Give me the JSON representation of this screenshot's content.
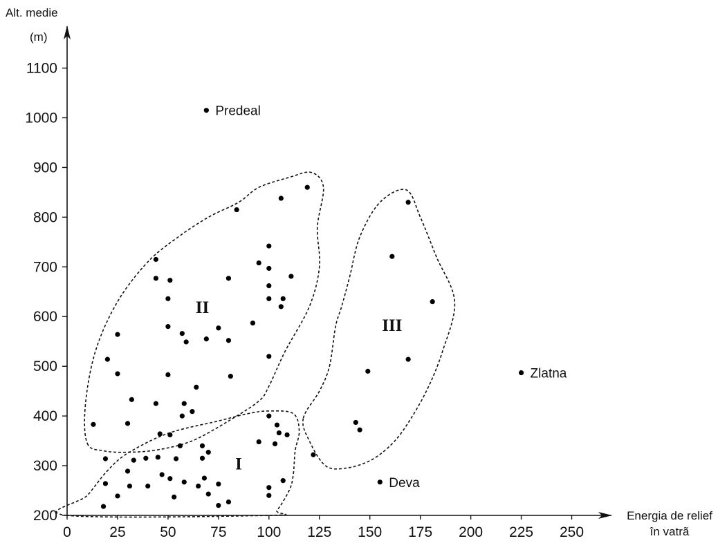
{
  "chart_data": {
    "type": "scatter",
    "title": "",
    "xlabel": "Energia de relief în vatrã",
    "xlabel_lines": [
      "Energia de relief",
      "în vatrã"
    ],
    "ylabel": "Alt. medie (m)",
    "ylabel_lines": [
      "Alt. medie",
      "(m)"
    ],
    "xlim": [
      0,
      250
    ],
    "ylim": [
      200,
      1100
    ],
    "x_ticks": [
      0,
      25,
      50,
      75,
      100,
      125,
      150,
      175,
      200,
      225,
      250
    ],
    "y_ticks": [
      200,
      300,
      400,
      500,
      600,
      700,
      800,
      900,
      1000,
      1100
    ],
    "grid": false,
    "points": [
      {
        "x": 69,
        "y": 1015,
        "label": "Predeal"
      },
      {
        "x": 225,
        "y": 487,
        "label": "Zlatna"
      },
      {
        "x": 155,
        "y": 267,
        "label": "Deva"
      },
      {
        "x": 119,
        "y": 860
      },
      {
        "x": 84,
        "y": 815
      },
      {
        "x": 106,
        "y": 838
      },
      {
        "x": 100,
        "y": 742
      },
      {
        "x": 95,
        "y": 708
      },
      {
        "x": 100,
        "y": 697
      },
      {
        "x": 111,
        "y": 681
      },
      {
        "x": 100,
        "y": 662
      },
      {
        "x": 100,
        "y": 636
      },
      {
        "x": 107,
        "y": 636
      },
      {
        "x": 106,
        "y": 620
      },
      {
        "x": 80,
        "y": 677
      },
      {
        "x": 44,
        "y": 715
      },
      {
        "x": 44,
        "y": 677
      },
      {
        "x": 51,
        "y": 673
      },
      {
        "x": 50,
        "y": 636
      },
      {
        "x": 25,
        "y": 564
      },
      {
        "x": 50,
        "y": 580
      },
      {
        "x": 57,
        "y": 566
      },
      {
        "x": 59,
        "y": 549
      },
      {
        "x": 69,
        "y": 555
      },
      {
        "x": 75,
        "y": 577
      },
      {
        "x": 80,
        "y": 552
      },
      {
        "x": 92,
        "y": 587
      },
      {
        "x": 20,
        "y": 514
      },
      {
        "x": 25,
        "y": 485
      },
      {
        "x": 50,
        "y": 483
      },
      {
        "x": 81,
        "y": 480
      },
      {
        "x": 100,
        "y": 520
      },
      {
        "x": 64,
        "y": 458
      },
      {
        "x": 32,
        "y": 433
      },
      {
        "x": 44,
        "y": 425
      },
      {
        "x": 58,
        "y": 425
      },
      {
        "x": 62,
        "y": 409
      },
      {
        "x": 57,
        "y": 400
      },
      {
        "x": 13,
        "y": 383
      },
      {
        "x": 30,
        "y": 385
      },
      {
        "x": 46,
        "y": 364
      },
      {
        "x": 51,
        "y": 362
      },
      {
        "x": 100,
        "y": 400
      },
      {
        "x": 104,
        "y": 382
      },
      {
        "x": 105,
        "y": 366
      },
      {
        "x": 109,
        "y": 362
      },
      {
        "x": 95,
        "y": 348
      },
      {
        "x": 103,
        "y": 344
      },
      {
        "x": 56,
        "y": 340
      },
      {
        "x": 67,
        "y": 340
      },
      {
        "x": 70,
        "y": 327
      },
      {
        "x": 19,
        "y": 314
      },
      {
        "x": 33,
        "y": 311
      },
      {
        "x": 39,
        "y": 315
      },
      {
        "x": 45,
        "y": 317
      },
      {
        "x": 54,
        "y": 314
      },
      {
        "x": 67,
        "y": 315
      },
      {
        "x": 30,
        "y": 289
      },
      {
        "x": 47,
        "y": 282
      },
      {
        "x": 51,
        "y": 274
      },
      {
        "x": 58,
        "y": 267
      },
      {
        "x": 68,
        "y": 275
      },
      {
        "x": 19,
        "y": 264
      },
      {
        "x": 31,
        "y": 259
      },
      {
        "x": 40,
        "y": 259
      },
      {
        "x": 65,
        "y": 259
      },
      {
        "x": 75,
        "y": 263
      },
      {
        "x": 100,
        "y": 256
      },
      {
        "x": 107,
        "y": 270
      },
      {
        "x": 25,
        "y": 239
      },
      {
        "x": 53,
        "y": 237
      },
      {
        "x": 70,
        "y": 243
      },
      {
        "x": 80,
        "y": 227
      },
      {
        "x": 100,
        "y": 240
      },
      {
        "x": 18,
        "y": 218
      },
      {
        "x": 75,
        "y": 220
      },
      {
        "x": 143,
        "y": 387
      },
      {
        "x": 145,
        "y": 372
      },
      {
        "x": 122,
        "y": 322
      },
      {
        "x": 169,
        "y": 830
      },
      {
        "x": 161,
        "y": 721
      },
      {
        "x": 181,
        "y": 630
      },
      {
        "x": 169,
        "y": 514
      },
      {
        "x": 149,
        "y": 490
      }
    ],
    "clusters": [
      {
        "label": "I",
        "label_at": [
          85,
          305
        ],
        "outline": [
          [
            0,
            200
          ],
          [
            10,
            240
          ],
          [
            20,
            290
          ],
          [
            30,
            325
          ],
          [
            50,
            365
          ],
          [
            75,
            390
          ],
          [
            90,
            405
          ],
          [
            100,
            410
          ],
          [
            112,
            405
          ],
          [
            115,
            370
          ],
          [
            113,
            330
          ],
          [
            112,
            280
          ],
          [
            110,
            250
          ],
          [
            104,
            210
          ],
          [
            100,
            200
          ]
        ]
      },
      {
        "label": "II",
        "label_at": [
          67,
          620
        ],
        "outline": [
          [
            10,
            345
          ],
          [
            18,
            330
          ],
          [
            30,
            327
          ],
          [
            45,
            332
          ],
          [
            62,
            350
          ],
          [
            80,
            390
          ],
          [
            95,
            430
          ],
          [
            100,
            460
          ],
          [
            108,
            530
          ],
          [
            120,
            620
          ],
          [
            125,
            700
          ],
          [
            124,
            780
          ],
          [
            127,
            860
          ],
          [
            121,
            890
          ],
          [
            110,
            880
          ],
          [
            95,
            860
          ],
          [
            85,
            830
          ],
          [
            70,
            800
          ],
          [
            55,
            760
          ],
          [
            40,
            710
          ],
          [
            25,
            630
          ],
          [
            14,
            530
          ],
          [
            9,
            420
          ]
        ]
      },
      {
        "label": "III",
        "label_at": [
          161,
          584
        ],
        "outline": [
          [
            117,
            395
          ],
          [
            120,
            350
          ],
          [
            128,
            300
          ],
          [
            138,
            295
          ],
          [
            150,
            310
          ],
          [
            160,
            340
          ],
          [
            168,
            380
          ],
          [
            178,
            450
          ],
          [
            186,
            530
          ],
          [
            192,
            630
          ],
          [
            183,
            720
          ],
          [
            175,
            800
          ],
          [
            168,
            855
          ],
          [
            155,
            830
          ],
          [
            145,
            760
          ],
          [
            140,
            680
          ],
          [
            136,
            620
          ],
          [
            133,
            580
          ],
          [
            130,
            500
          ],
          [
            125,
            450
          ]
        ]
      }
    ]
  }
}
